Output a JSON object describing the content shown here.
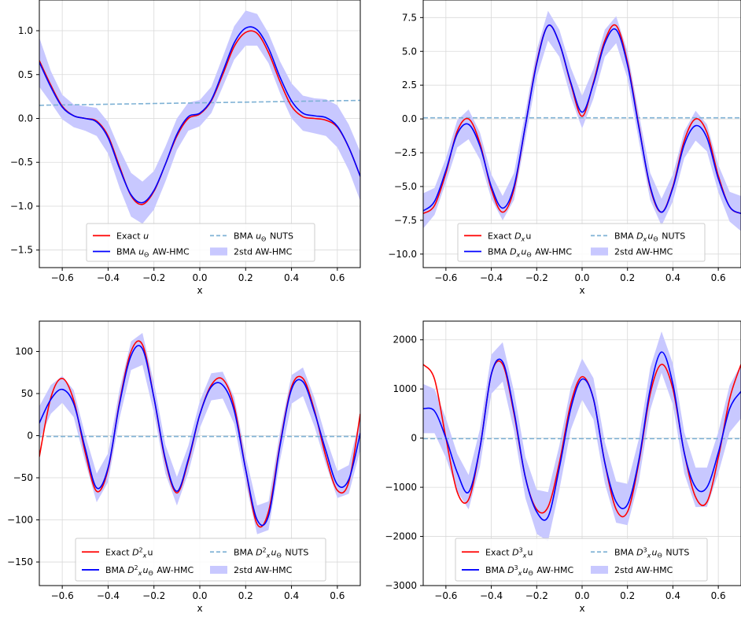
{
  "colors": {
    "exact": "#ff0000",
    "bma_aw": "#0000ff",
    "bma_nuts": "#7fb2d5",
    "band": "#c8c8ff",
    "grid": "#d9d9d9"
  },
  "chart_data": [
    {
      "type": "line",
      "xlabel": "x",
      "ylabel": "",
      "xlim": [
        -0.7,
        0.7
      ],
      "ylim": [
        -1.7,
        1.35
      ],
      "xticks": [
        -0.6,
        -0.4,
        -0.2,
        0.0,
        0.2,
        0.4,
        0.6
      ],
      "xtick_labels": [
        "−0.6",
        "−0.4",
        "−0.2",
        "0.0",
        "0.2",
        "0.4",
        "0.6"
      ],
      "yticks": [
        -1.5,
        -1.0,
        -0.5,
        0.0,
        0.5,
        1.0
      ],
      "ytick_labels": [
        "−1.5",
        "−1.0",
        "−0.5",
        "0.0",
        "0.5",
        "1.0"
      ],
      "grid": true,
      "legend_position": "bottom-center",
      "legend": {
        "exact": "Exact u",
        "bma": "BMA uΘ AW-HMC",
        "nuts": "BMA uΘ NUTS",
        "band": "2std AW-HMC"
      },
      "x": [
        -0.7,
        -0.65,
        -0.6,
        -0.55,
        -0.5,
        -0.45,
        -0.4,
        -0.35,
        -0.3,
        -0.25,
        -0.2,
        -0.15,
        -0.1,
        -0.05,
        0.0,
        0.05,
        0.1,
        0.15,
        0.2,
        0.25,
        0.3,
        0.35,
        0.4,
        0.45,
        0.5,
        0.55,
        0.6,
        0.65,
        0.7
      ],
      "series": [
        {
          "name": "Exact u",
          "values": [
            0.66,
            0.38,
            0.14,
            0.03,
            0.0,
            -0.03,
            -0.2,
            -0.55,
            -0.88,
            -0.98,
            -0.83,
            -0.52,
            -0.2,
            0.0,
            0.05,
            0.2,
            0.5,
            0.82,
            0.98,
            0.97,
            0.75,
            0.42,
            0.14,
            0.02,
            0.0,
            -0.02,
            -0.1,
            -0.33,
            -0.66
          ]
        },
        {
          "name": "BMA uΘ AW-HMC",
          "values": [
            0.64,
            0.36,
            0.13,
            0.03,
            0.0,
            -0.04,
            -0.22,
            -0.57,
            -0.87,
            -0.96,
            -0.82,
            -0.52,
            -0.18,
            0.02,
            0.06,
            0.21,
            0.53,
            0.86,
            1.03,
            1.01,
            0.8,
            0.47,
            0.2,
            0.06,
            0.03,
            0.01,
            -0.09,
            -0.33,
            -0.66
          ]
        },
        {
          "name": "BMA uΘ NUTS",
          "values": [
            0.15,
            0.152,
            0.154,
            0.156,
            0.158,
            0.16,
            0.162,
            0.164,
            0.166,
            0.168,
            0.17,
            0.172,
            0.174,
            0.176,
            0.178,
            0.18,
            0.182,
            0.184,
            0.186,
            0.188,
            0.19,
            0.192,
            0.194,
            0.196,
            0.198,
            0.2,
            0.202,
            0.204,
            0.206
          ]
        }
      ],
      "band_halfwidth": [
        0.28,
        0.18,
        0.14,
        0.13,
        0.14,
        0.16,
        0.18,
        0.22,
        0.25,
        0.24,
        0.22,
        0.2,
        0.18,
        0.16,
        0.15,
        0.15,
        0.17,
        0.19,
        0.2,
        0.18,
        0.17,
        0.18,
        0.2,
        0.2,
        0.2,
        0.21,
        0.24,
        0.26,
        0.28
      ]
    },
    {
      "type": "line",
      "xlabel": "x",
      "ylabel": "",
      "xlim": [
        -0.7,
        0.7
      ],
      "ylim": [
        -11.0,
        8.8
      ],
      "xticks": [
        -0.6,
        -0.4,
        -0.2,
        0.0,
        0.2,
        0.4,
        0.6
      ],
      "xtick_labels": [
        "−0.6",
        "−0.4",
        "−0.2",
        "0.0",
        "0.2",
        "0.4",
        "0.6"
      ],
      "yticks": [
        -10.0,
        -7.5,
        -5.0,
        -2.5,
        0.0,
        2.5,
        5.0,
        7.5
      ],
      "ytick_labels": [
        "−10.0",
        "−7.5",
        "−5.0",
        "−2.5",
        "0.0",
        "2.5",
        "5.0",
        "7.5"
      ],
      "grid": true,
      "legend_position": "bottom-center",
      "legend": {
        "exact": "Exact Dxu",
        "bma": "BMA DxuΘ AW-HMC",
        "nuts": "BMA DxuΘ NUTS",
        "band": "2std AW-HMC"
      },
      "x": [
        -0.7,
        -0.65,
        -0.6,
        -0.55,
        -0.5,
        -0.45,
        -0.4,
        -0.35,
        -0.3,
        -0.25,
        -0.2,
        -0.15,
        -0.1,
        -0.05,
        0.0,
        0.05,
        0.1,
        0.15,
        0.2,
        0.25,
        0.3,
        0.35,
        0.4,
        0.45,
        0.5,
        0.55,
        0.6,
        0.65,
        0.7
      ],
      "series": [
        {
          "name": "Exact Dxu",
          "values": [
            -7.0,
            -6.4,
            -4.0,
            -0.9,
            0.0,
            -1.8,
            -5.2,
            -6.9,
            -5.2,
            -0.5,
            4.2,
            6.9,
            5.6,
            2.6,
            0.2,
            2.7,
            5.8,
            6.9,
            4.2,
            -0.5,
            -5.1,
            -6.9,
            -5.0,
            -1.6,
            0.0,
            -1.0,
            -4.2,
            -6.5,
            -7.0
          ]
        },
        {
          "name": "BMA DxuΘ AW-HMC",
          "values": [
            -6.8,
            -6.1,
            -3.8,
            -1.1,
            -0.4,
            -2.0,
            -5.0,
            -6.6,
            -5.0,
            -0.5,
            4.1,
            6.9,
            5.6,
            2.7,
            0.5,
            2.6,
            5.6,
            6.6,
            4.0,
            -0.6,
            -5.0,
            -6.9,
            -5.1,
            -1.9,
            -0.5,
            -1.4,
            -4.4,
            -6.5,
            -7.0
          ]
        },
        {
          "name": "BMA DxuΘ NUTS",
          "values": [
            0.08,
            0.08,
            0.08,
            0.08,
            0.08,
            0.08,
            0.08,
            0.08,
            0.08,
            0.08,
            0.08,
            0.08,
            0.08,
            0.08,
            0.08,
            0.08,
            0.08,
            0.08,
            0.08,
            0.08,
            0.08,
            0.08,
            0.08,
            0.08,
            0.08,
            0.08,
            0.08,
            0.08,
            0.08
          ]
        }
      ],
      "band_halfwidth": [
        1.3,
        1.0,
        0.9,
        1.0,
        1.1,
        1.0,
        0.9,
        0.9,
        1.0,
        1.0,
        1.0,
        1.1,
        1.0,
        1.1,
        1.2,
        1.1,
        1.0,
        1.0,
        1.0,
        1.0,
        1.0,
        1.0,
        1.0,
        1.0,
        1.1,
        1.0,
        1.0,
        1.1,
        1.3
      ]
    },
    {
      "type": "line",
      "xlabel": "x",
      "ylabel": "",
      "xlim": [
        -0.7,
        0.7
      ],
      "ylim": [
        -178,
        136
      ],
      "xticks": [
        -0.6,
        -0.4,
        -0.2,
        0.0,
        0.2,
        0.4,
        0.6
      ],
      "xtick_labels": [
        "−0.6",
        "−0.4",
        "−0.2",
        "0.0",
        "0.2",
        "0.4",
        "0.6"
      ],
      "yticks": [
        -150,
        -100,
        -50,
        0,
        50,
        100
      ],
      "ytick_labels": [
        "−150",
        "−100",
        "−50",
        "0",
        "50",
        "100"
      ],
      "grid": true,
      "legend_position": "bottom-center",
      "legend": {
        "exact": "Exact D²xu",
        "bma": "BMA D²xuΘ AW-HMC",
        "nuts": "BMA D²xuΘ NUTS",
        "band": "2std AW-HMC"
      },
      "x": [
        -0.7,
        -0.65,
        -0.6,
        -0.55,
        -0.5,
        -0.45,
        -0.4,
        -0.35,
        -0.3,
        -0.25,
        -0.2,
        -0.15,
        -0.1,
        -0.05,
        0.0,
        0.05,
        0.1,
        0.15,
        0.2,
        0.25,
        0.3,
        0.35,
        0.4,
        0.45,
        0.5,
        0.55,
        0.6,
        0.65,
        0.7
      ],
      "series": [
        {
          "name": "Exact D²xu",
          "values": [
            -25,
            45,
            68,
            42,
            -20,
            -66,
            -40,
            40,
            100,
            108,
            45,
            -30,
            -68,
            -30,
            25,
            60,
            67,
            35,
            -40,
            -105,
            -90,
            -10,
            58,
            68,
            30,
            -25,
            -65,
            -55,
            26
          ]
        },
        {
          "name": "BMA D²xuΘ AW-HMC",
          "values": [
            15,
            43,
            55,
            38,
            -15,
            -62,
            -38,
            38,
            95,
            103,
            45,
            -28,
            -66,
            -28,
            25,
            58,
            60,
            30,
            -40,
            -100,
            -95,
            -12,
            55,
            64,
            28,
            -18,
            -58,
            -52,
            3
          ]
        },
        {
          "name": "BMA D²xuΘ NUTS",
          "values": [
            -1,
            -1,
            -1,
            -1,
            -1,
            -1,
            -1,
            -1,
            -1,
            -1,
            -1,
            -1,
            -1,
            -1,
            -1,
            -1,
            -1,
            -1,
            -1,
            -1,
            -1,
            -1,
            -1,
            -1,
            -1,
            -1,
            -1,
            -1,
            -1
          ]
        }
      ],
      "band_halfwidth": [
        20,
        17,
        16,
        16,
        16,
        17,
        17,
        17,
        17,
        19,
        18,
        17,
        17,
        16,
        16,
        16,
        16,
        16,
        16,
        17,
        17,
        17,
        17,
        17,
        17,
        16,
        16,
        17,
        20
      ]
    },
    {
      "type": "line",
      "xlabel": "x",
      "ylabel": "",
      "xlim": [
        -0.7,
        0.7
      ],
      "ylim": [
        -3000,
        2380
      ],
      "xticks": [
        -0.6,
        -0.4,
        -0.2,
        0.0,
        0.2,
        0.4,
        0.6
      ],
      "xtick_labels": [
        "−0.6",
        "−0.4",
        "−0.2",
        "0.0",
        "0.2",
        "0.4",
        "0.6"
      ],
      "yticks": [
        -3000,
        -2000,
        -1000,
        0,
        1000,
        2000
      ],
      "ytick_labels": [
        "−3000",
        "−2000",
        "−1000",
        "0",
        "1000",
        "2000"
      ],
      "grid": true,
      "legend_position": "bottom-center",
      "legend": {
        "exact": "Exact D³xu",
        "bma": "BMA D³xuΘ AW-HMC",
        "nuts": "BMA D³xuΘ NUTS",
        "band": "2std AW-HMC"
      },
      "x": [
        -0.7,
        -0.65,
        -0.6,
        -0.55,
        -0.5,
        -0.45,
        -0.4,
        -0.35,
        -0.3,
        -0.25,
        -0.2,
        -0.15,
        -0.1,
        -0.05,
        0.0,
        0.05,
        0.1,
        0.15,
        0.2,
        0.25,
        0.3,
        0.35,
        0.4,
        0.45,
        0.5,
        0.55,
        0.6,
        0.65,
        0.7
      ],
      "series": [
        {
          "name": "Exact D³xu",
          "values": [
            1500,
            1200,
            0,
            -1100,
            -1250,
            -200,
            1300,
            1500,
            500,
            -800,
            -1450,
            -1400,
            -500,
            700,
            1250,
            800,
            -500,
            -1450,
            -1500,
            -500,
            900,
            1500,
            1000,
            -300,
            -1200,
            -1300,
            -400,
            800,
            1500
          ]
        },
        {
          "name": "BMA D³xuΘ AW-HMC",
          "values": [
            600,
            550,
            0,
            -700,
            -1100,
            -200,
            1300,
            1550,
            550,
            -800,
            -1500,
            -1600,
            -600,
            600,
            1200,
            800,
            -500,
            -1300,
            -1350,
            -450,
            1000,
            1750,
            1100,
            -300,
            -1000,
            -1000,
            -300,
            600,
            950
          ]
        },
        {
          "name": "BMA D³xuΘ NUTS",
          "values": [
            -10,
            -10,
            -10,
            -10,
            -10,
            -10,
            -10,
            -10,
            -10,
            -10,
            -10,
            -10,
            -10,
            -10,
            -10,
            -10,
            -10,
            -10,
            -10,
            -10,
            -10,
            -10,
            -10,
            -10,
            -10,
            -10,
            -10,
            -10,
            -10
          ]
        }
      ],
      "band_halfwidth": [
        500,
        450,
        400,
        380,
        350,
        380,
        400,
        400,
        400,
        420,
        450,
        500,
        450,
        430,
        420,
        420,
        420,
        420,
        420,
        430,
        430,
        420,
        420,
        420,
        400,
        400,
        420,
        480,
        550
      ]
    }
  ]
}
